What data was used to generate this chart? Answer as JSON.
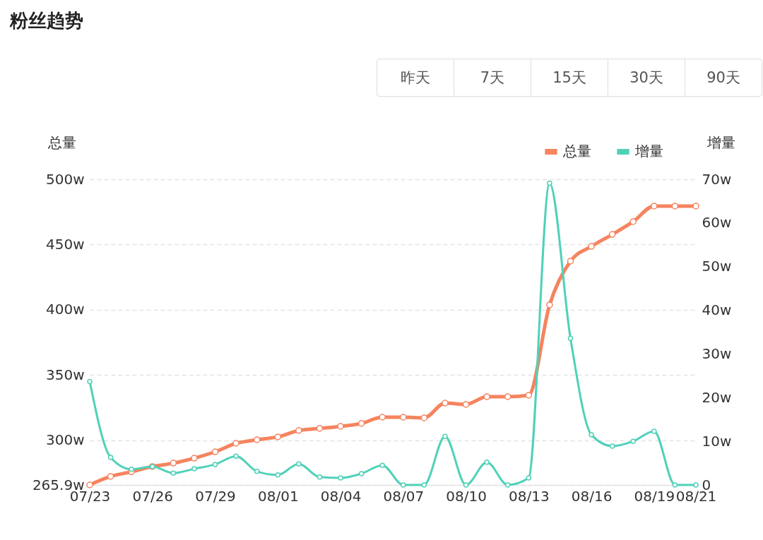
{
  "chart_data": {
    "type": "line",
    "title": "粉丝趋势",
    "ylabel": "总量",
    "y2label": "增量",
    "annotations": [
      "昨天",
      "7天",
      "15天",
      "30天",
      "90天"
    ],
    "categories": [
      "07/23",
      null,
      null,
      "07/26",
      null,
      null,
      "07/29",
      null,
      null,
      "08/01",
      null,
      null,
      "08/04",
      null,
      null,
      "08/07",
      null,
      null,
      "08/10",
      null,
      null,
      "08/13",
      null,
      null,
      "08/16",
      null,
      null,
      "08/19",
      null,
      "08/21"
    ],
    "series": [
      {
        "name": "总量",
        "color": "#f5845f",
        "values": [
          265.9,
          272.4,
          276,
          280,
          282.6,
          286.4,
          291.3,
          297.8,
          300.5,
          302.7,
          307.6,
          309.2,
          310.8,
          313,
          317.8,
          317.8,
          317.3,
          328.6,
          327.6,
          333.5,
          333.5,
          334.6,
          403.8,
          437.3,
          448.6,
          457.8,
          467.6,
          479.5,
          479.5,
          479.5
        ]
      },
      {
        "name": "增量",
        "color": "#4fd1b9",
        "axis": "y2",
        "values": [
          23.7,
          6.3,
          3.6,
          4.2,
          2.7,
          3.7,
          4.7,
          6.6,
          3.1,
          2.3,
          4.8,
          1.8,
          1.6,
          2.6,
          4.5,
          0,
          0,
          11.1,
          0,
          5.2,
          0,
          1.6,
          69.1,
          33.6,
          11.5,
          8.9,
          10,
          12.3,
          0,
          0
        ]
      }
    ],
    "ylim": [
      265.9,
      500
    ],
    "yticks": [
      {
        "value": 265.9,
        "label": "265.9w"
      },
      {
        "value": 300,
        "label": "300w"
      },
      {
        "value": 350,
        "label": "350w"
      },
      {
        "value": 400,
        "label": "400w"
      },
      {
        "value": 450,
        "label": "450w"
      },
      {
        "value": 500,
        "label": "500w"
      }
    ],
    "y2lim": [
      0,
      70
    ],
    "y2ticks": [
      0,
      {
        "value": 10,
        "label": "10w"
      },
      {
        "value": 20,
        "label": "20w"
      },
      {
        "value": 30,
        "label": "30w"
      },
      {
        "value": 40,
        "label": "40w"
      },
      {
        "value": 50,
        "label": "50w"
      },
      {
        "value": 60,
        "label": "60w"
      },
      {
        "value": 70,
        "label": "70w"
      }
    ],
    "grid": "y",
    "legend": "top right",
    "marker": "circle",
    "line_style": "solid"
  }
}
